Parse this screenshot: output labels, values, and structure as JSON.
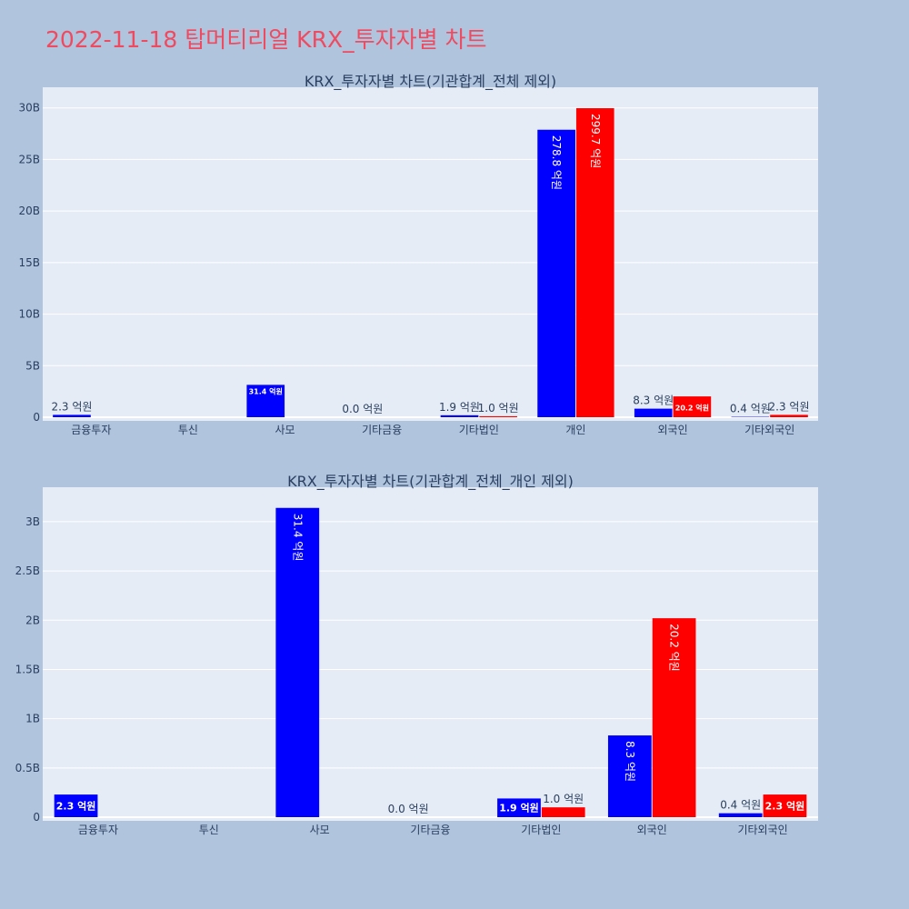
{
  "page": {
    "title": "2022-11-18 탑머티리얼 KRX_투자자별 차트"
  },
  "colors": {
    "page_background": "#b0c4de",
    "plot_background": "#e5ecf6",
    "grid": "#ffffff",
    "buy_series": "#0000ff",
    "sell_series": "#ff0000",
    "title": "#ef4a5f",
    "text": "#2a3f5f"
  },
  "chart_data": [
    {
      "type": "bar",
      "title": "KRX_투자자별 차트(기관합계_전체 제외)",
      "categories": [
        "금융투자",
        "투신",
        "사모",
        "기타금융",
        "기타법인",
        "개인",
        "외국인",
        "기타외국인"
      ],
      "ylim": [
        0,
        32000000000
      ],
      "yticks": [
        0,
        5000000000,
        10000000000,
        15000000000,
        20000000000,
        25000000000,
        30000000000
      ],
      "ytick_labels": [
        "0",
        "5B",
        "10B",
        "15B",
        "20B",
        "25B",
        "30B"
      ],
      "grid": true,
      "series": [
        {
          "color": "#0000ff",
          "values": [
            230000000,
            null,
            3140000000,
            0,
            190000000,
            27880000000,
            830000000,
            40000000
          ],
          "labels": [
            "2.3 억원",
            "",
            "31.4 억원",
            "0.0 억원",
            "1.9 억원",
            "278.8 억원",
            "8.3 억원",
            "0.4 억원"
          ]
        },
        {
          "color": "#ff0000",
          "values": [
            null,
            null,
            null,
            null,
            100000000,
            29970000000,
            2020000000,
            230000000
          ],
          "labels": [
            "",
            "",
            "",
            "",
            "1.0 억원",
            "299.7 억원",
            "20.2 억원",
            "2.3 억원"
          ]
        }
      ]
    },
    {
      "type": "bar",
      "title": "KRX_투자자별 차트(기관합계_전체_개인 제외)",
      "categories": [
        "금융투자",
        "투신",
        "사모",
        "기타금융",
        "기타법인",
        "외국인",
        "기타외국인"
      ],
      "ylim": [
        0,
        3350000000
      ],
      "yticks": [
        0,
        500000000,
        1000000000,
        1500000000,
        2000000000,
        2500000000,
        3000000000
      ],
      "ytick_labels": [
        "0",
        "0.5B",
        "1B",
        "1.5B",
        "2B",
        "2.5B",
        "3B"
      ],
      "grid": true,
      "series": [
        {
          "color": "#0000ff",
          "values": [
            230000000,
            null,
            3140000000,
            0,
            190000000,
            830000000,
            40000000
          ],
          "labels": [
            "2.3 억원",
            "",
            "31.4 억원",
            "0.0 억원",
            "1.9 억원",
            "8.3 억원",
            "0.4 억원"
          ]
        },
        {
          "color": "#ff0000",
          "values": [
            null,
            null,
            null,
            null,
            100000000,
            2020000000,
            230000000
          ],
          "labels": [
            "",
            "",
            "",
            "",
            "1.0 억원",
            "20.2 억원",
            "2.3 억원"
          ]
        }
      ]
    }
  ]
}
